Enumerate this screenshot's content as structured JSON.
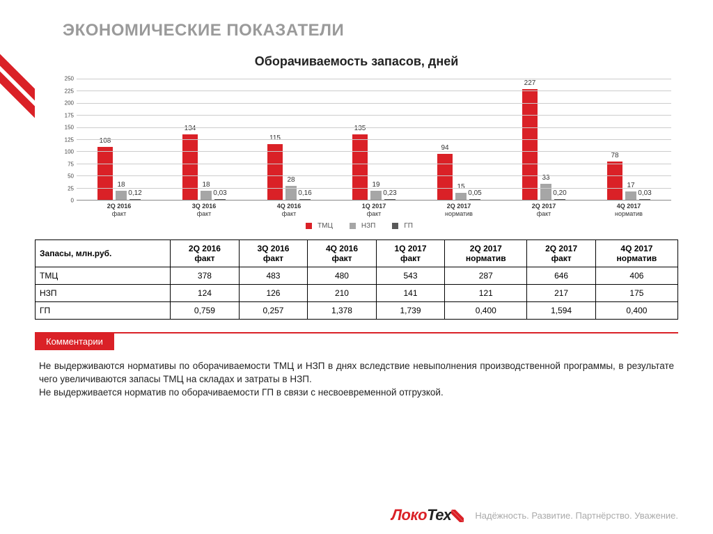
{
  "page_title": "ЭКОНОМИЧЕСКИЕ ПОКАЗАТЕЛИ",
  "chart": {
    "title": "Оборачиваемость запасов, дней",
    "type": "bar-grouped",
    "y": {
      "min": 0,
      "max": 250,
      "step": 25
    },
    "categories": [
      {
        "line1": "2Q 2016",
        "line2": "факт"
      },
      {
        "line1": "3Q 2016",
        "line2": "факт"
      },
      {
        "line1": "4Q 2016",
        "line2": "факт"
      },
      {
        "line1": "1Q 2017",
        "line2": "факт"
      },
      {
        "line1": "2Q 2017",
        "line2": "норматив"
      },
      {
        "line1": "2Q 2017",
        "line2": "факт"
      },
      {
        "line1": "4Q 2017",
        "line2": "норматив"
      }
    ],
    "series": [
      {
        "name": "ТМЦ",
        "color": "#da2127",
        "values": [
          108,
          134,
          115,
          135,
          94,
          227,
          78
        ]
      },
      {
        "name": "НЗП",
        "color": "#a6a6a6",
        "values": [
          18,
          18,
          28,
          19,
          15,
          33,
          17
        ]
      },
      {
        "name": "ГП",
        "color": "#595959",
        "values": [
          0.12,
          0.03,
          0.16,
          0.23,
          0.05,
          0.2,
          0.03
        ],
        "labels": [
          "0,12",
          "0,03",
          "0,16",
          "0,23",
          "0,05",
          "0,20",
          "0,03"
        ]
      }
    ],
    "grid_color": "#cccccc",
    "axis_color": "#888888",
    "label_fontsize": 10
  },
  "table": {
    "header_label": "Запасы, млн.руб.",
    "columns": [
      "2Q 2016\nфакт",
      "3Q 2016\nфакт",
      "4Q 2016\nфакт",
      "1Q 2017\nфакт",
      "2Q 2017\nнорматив",
      "2Q 2017\nфакт",
      "4Q 2017\nнорматив"
    ],
    "rows": [
      {
        "name": "ТМЦ",
        "cells": [
          "378",
          "483",
          "480",
          "543",
          "287",
          "646",
          "406"
        ]
      },
      {
        "name": "НЗП",
        "cells": [
          "124",
          "126",
          "210",
          "141",
          "121",
          "217",
          "175"
        ]
      },
      {
        "name": "ГП",
        "cells": [
          "0,759",
          "0,257",
          "1,378",
          "1,739",
          "0,400",
          "1,594",
          "0,400"
        ]
      }
    ]
  },
  "comments": {
    "tab": "Комментарии",
    "text": "Не выдерживаются нормативы по оборачиваемости ТМЦ и НЗП в днях вследствие невыполнения производственной программы, в результате чего увеличиваются запасы ТМЦ на складах и затраты в НЗП.\nНе выдерживается норматив по оборачиваемости ГП в связи с несвоевременной отгрузкой."
  },
  "footer": {
    "logo_red": "Локо",
    "logo_black": "Тех",
    "tagline": "Надёжность. Развитие. Партнёрство. Уважение."
  }
}
